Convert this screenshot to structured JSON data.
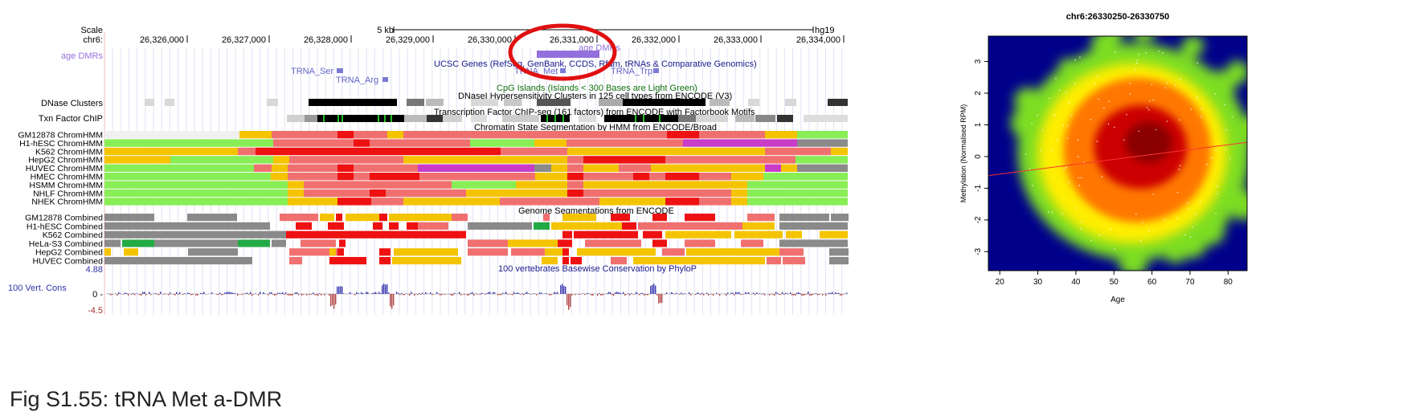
{
  "browser": {
    "scale_label": "Scale",
    "chrom_label": "chr6:",
    "scale_bar_label": "5 kb",
    "assembly": "hg19",
    "ticks": [
      "26,326,000",
      "26,327,000",
      "26,328,000",
      "26,329,000",
      "26,330,000",
      "26,331,000",
      "26,332,000",
      "26,333,000",
      "26,334,000"
    ],
    "tracks": {
      "age_dmrs": "age DMRs",
      "age_dmrs_feature": "age DMRs",
      "ucsc_genes": "UCSC Genes (RefSeq, GenBank, CCDS, Rfam, tRNAs & Comparative Genomics)",
      "trna": [
        "TRNA_Ser",
        "TRNA_Arg",
        "TRNA_Met",
        "TRNA_Trp"
      ],
      "cpg": "CpG Islands (Islands < 300 Bases are Light Green)",
      "dnase_label": "DNase Clusters",
      "dnase_title": "DNaseI Hypersensitivity Clusters in 125 cell types from ENCODE (V3)",
      "tfbs_label": "Txn Factor ChIP",
      "tfbs_title": "Transcription Factor ChIP-seq (161 factors) from ENCODE with Factorbook Motifs",
      "chromhmm_title": "Chromatin State Segmentation by HMM from ENCODE/Broad",
      "chromhmm_rows": [
        "GM12878 ChromHMM",
        "H1-hESC ChromHMM",
        "K562 ChromHMM",
        "HepG2 ChromHMM",
        "HUVEC ChromHMM",
        "HMEC ChromHMM",
        "HSMM ChromHMM",
        "NHLF ChromHMM",
        "NHEK ChromHMM"
      ],
      "combined_title": "Genome Segmentations from ENCODE",
      "combined_rows": [
        "GM12878 Combined",
        "H1-hESC Combined",
        "K562 Combined",
        "HeLa-S3 Combined",
        "HepG2 Combined",
        "HUVEC Combined"
      ],
      "cons_max": "4.88",
      "cons_title": "100 vertebrates Basewise Conservation by PhyloP",
      "cons_label": "100 Vert. Cons",
      "cons_zero": "0 -",
      "cons_min": "-4.5"
    },
    "colors": {
      "dmr": "#9370db",
      "trna": "#7b7bd6",
      "link": "#1a1a8c",
      "cpg": "#107010",
      "red": "#ee1111",
      "salmon": "#f07070",
      "yellow": "#f5c400",
      "yellow_light": "#f2e030",
      "green": "#88ee55",
      "purple": "#c83cc8",
      "grey": "#8a8a8a",
      "annotation_ring": "#e01010"
    }
  },
  "plot": {
    "title": "chr6:26330250-26330750",
    "xlabel": "Age",
    "ylabel": "Methylation (Normalised RPM)",
    "xticks": [
      "20",
      "30",
      "40",
      "50",
      "60",
      "70",
      "80"
    ],
    "yticks": [
      "-3",
      "-2",
      "-1",
      "0",
      "1",
      "2",
      "3"
    ],
    "colors": {
      "background": "#00008b",
      "low": "#7cdd22",
      "mid": "#ffee00",
      "high": "#ff7700",
      "peak": "#cc0000",
      "trend": "#ff3333"
    }
  },
  "chart_data": {
    "type": "heatmap",
    "title": "chr6:26330250-26330750",
    "xlabel": "Age",
    "ylabel": "Methylation (Normalised RPM)",
    "xlim": [
      17,
      85
    ],
    "ylim": [
      -3.6,
      3.8
    ],
    "density_peak": {
      "x": 57,
      "y": 0.2
    },
    "trend_line": {
      "x": [
        17,
        85
      ],
      "y": [
        -0.6,
        0.45
      ]
    }
  },
  "caption": "Fig S1.55: tRNA Met a-DMR"
}
